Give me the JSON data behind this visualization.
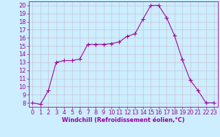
{
  "x": [
    0,
    1,
    2,
    3,
    4,
    5,
    6,
    7,
    8,
    9,
    10,
    11,
    12,
    13,
    14,
    15,
    16,
    17,
    18,
    19,
    20,
    21,
    22,
    23
  ],
  "y": [
    8.0,
    7.8,
    9.5,
    13.0,
    13.2,
    13.2,
    13.4,
    15.2,
    15.2,
    15.2,
    15.3,
    15.5,
    16.2,
    16.5,
    18.3,
    20.0,
    20.0,
    18.5,
    16.3,
    13.3,
    10.8,
    9.5,
    8.0,
    8.0
  ],
  "color": "#990099",
  "bg_color": "#cceeff",
  "grid_color": "#bbdddd",
  "xlabel": "Windchill (Refroidissement éolien,°C)",
  "ylim": [
    7.5,
    20.5
  ],
  "xlim": [
    -0.5,
    23.5
  ],
  "yticks": [
    8,
    9,
    10,
    11,
    12,
    13,
    14,
    15,
    16,
    17,
    18,
    19,
    20
  ],
  "xticks": [
    0,
    1,
    2,
    3,
    4,
    5,
    6,
    7,
    8,
    9,
    10,
    11,
    12,
    13,
    14,
    15,
    16,
    17,
    18,
    19,
    20,
    21,
    22,
    23
  ],
  "linewidth": 0.8,
  "markersize": 4,
  "tick_fontsize": 6,
  "xlabel_fontsize": 6
}
